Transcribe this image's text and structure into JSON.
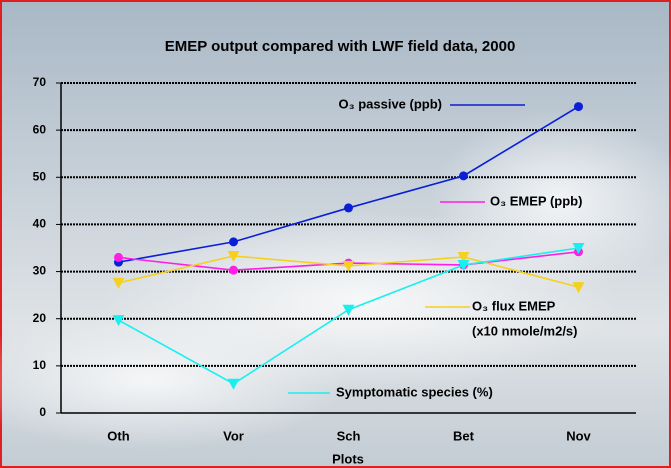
{
  "chart_data": {
    "type": "line",
    "title": "EMEP output compared with LWF field data, 2000",
    "x_label": "Plots",
    "categories": [
      "Oth",
      "Vor",
      "Sch",
      "Bet",
      "Nov"
    ],
    "series": [
      {
        "name": "O₃ passive (ppb)",
        "color": "#0a1fd6",
        "marker": "circle",
        "values": [
          32,
          36.3,
          43.5,
          50.3,
          65
        ]
      },
      {
        "name": "O₃ EMEP (ppb)",
        "color": "#ff1ee6",
        "marker": "circle",
        "values": [
          33,
          30.3,
          31.8,
          31.4,
          34.2
        ]
      },
      {
        "name": "O₃ flux EMEP",
        "color": "#f5d020",
        "marker": "triangle",
        "values": [
          27.6,
          33.3,
          31.2,
          33.1,
          26.7
        ]
      },
      {
        "name": "Symptomatic species (%)",
        "color": "#18f0f0",
        "marker": "triangle",
        "values": [
          19.7,
          6.2,
          21.9,
          31.4,
          35
        ]
      }
    ],
    "annotations": [
      "(x10 nmole/m2/s)"
    ],
    "ylim": [
      0,
      70
    ],
    "yticks": [
      0,
      10,
      20,
      30,
      40,
      50,
      60,
      70
    ],
    "grid": true
  }
}
